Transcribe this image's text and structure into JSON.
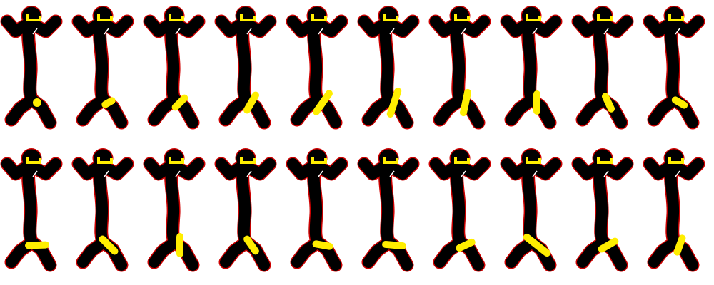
{
  "sheet": {
    "rows": 2,
    "columns": 10,
    "frame_count": 20,
    "background": "#ffffff",
    "figure_color": "#000000",
    "outline_color": "#cc0000",
    "accent_color": "#ffee00",
    "highlight_color": "#ffffff"
  },
  "frames": [
    {
      "index": 1,
      "prop_angle_deg": 0,
      "prop_length": 0
    },
    {
      "index": 2,
      "prop_angle_deg": -30,
      "prop_length": 0.45
    },
    {
      "index": 3,
      "prop_angle_deg": -45,
      "prop_length": 0.75
    },
    {
      "index": 4,
      "prop_angle_deg": -60,
      "prop_length": 1.0
    },
    {
      "index": 5,
      "prop_angle_deg": -55,
      "prop_length": 1.3
    },
    {
      "index": 6,
      "prop_angle_deg": -72,
      "prop_length": 1.4
    },
    {
      "index": 7,
      "prop_angle_deg": -78,
      "prop_length": 1.2
    },
    {
      "index": 8,
      "prop_angle_deg": 90,
      "prop_length": 1.0
    },
    {
      "index": 9,
      "prop_angle_deg": 65,
      "prop_length": 0.8
    },
    {
      "index": 10,
      "prop_angle_deg": 30,
      "prop_length": 0.6
    },
    {
      "index": 11,
      "prop_angle_deg": 178,
      "prop_length": 1.0
    },
    {
      "index": 12,
      "prop_angle_deg": -135,
      "prop_length": 1.0
    },
    {
      "index": 13,
      "prop_angle_deg": 90,
      "prop_length": 1.0
    },
    {
      "index": 14,
      "prop_angle_deg": 55,
      "prop_length": 0.85
    },
    {
      "index": 15,
      "prop_angle_deg": 10,
      "prop_length": 0.8
    },
    {
      "index": 16,
      "prop_angle_deg": 5,
      "prop_length": 1.0
    },
    {
      "index": 17,
      "prop_angle_deg": -25,
      "prop_length": 0.8
    },
    {
      "index": 18,
      "prop_angle_deg": 38,
      "prop_length": 1.5
    },
    {
      "index": 19,
      "prop_angle_deg": -30,
      "prop_length": 0.9
    },
    {
      "index": 20,
      "prop_angle_deg": -70,
      "prop_length": 0.85
    }
  ]
}
